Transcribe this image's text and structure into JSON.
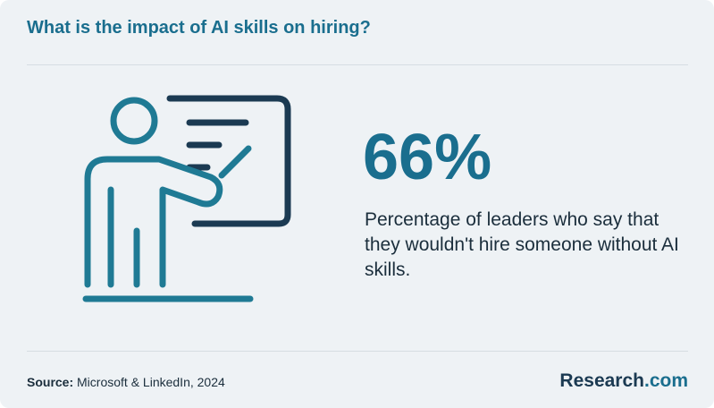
{
  "header": {
    "title": "What is the impact of AI skills on hiring?"
  },
  "stat": {
    "value": "66%",
    "description": "Percentage of leaders who say that they wouldn't hire someone without AI skills."
  },
  "footer": {
    "source_label": "Source:",
    "source": "Microsoft & LinkedIn, 2024",
    "brand": "Research",
    "brand_suffix": ".com"
  }
}
